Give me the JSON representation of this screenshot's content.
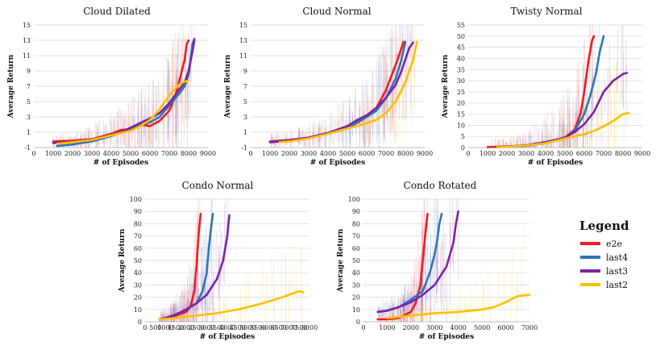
{
  "figure_legend": {
    "title": "Legend",
    "entries": [
      {
        "name": "e2e",
        "color": "#ee1c25"
      },
      {
        "name": "last4",
        "color": "#2e75b6"
      },
      {
        "name": "last3",
        "color": "#7b23a7"
      },
      {
        "name": "last2",
        "color": "#ffc000"
      }
    ]
  },
  "chart_data": [
    {
      "type": "line",
      "title": "Cloud Dilated",
      "xlabel": "# of Episodes",
      "ylabel": "Average Return",
      "xlim": [
        0,
        9000
      ],
      "ylim": [
        -1,
        15
      ],
      "xticks": [
        0,
        1000,
        2000,
        3000,
        4000,
        5000,
        6000,
        7000,
        8000,
        9000
      ],
      "yticks": [
        -1,
        1,
        3,
        5,
        7,
        9,
        11,
        13,
        15
      ],
      "series": [
        {
          "name": "e2e",
          "color": "#ee1c25",
          "x": [
            1000,
            2000,
            3000,
            4000,
            4500,
            5000,
            5500,
            6000,
            6500,
            7000,
            7200,
            7400,
            7600,
            7800,
            7900,
            8000
          ],
          "y": [
            -0.2,
            -0.1,
            0.1,
            0.8,
            1.3,
            1.4,
            2.0,
            1.8,
            2.5,
            3.8,
            5.0,
            6.5,
            8.5,
            10.5,
            12.5,
            13
          ]
        },
        {
          "name": "last4",
          "color": "#2e75b6",
          "x": [
            1200,
            2000,
            3000,
            4000,
            5000,
            6000,
            6500,
            7000,
            7500,
            7800,
            8000,
            8100,
            8200,
            8300
          ],
          "y": [
            -0.8,
            -0.6,
            -0.2,
            0.5,
            1.5,
            2.3,
            3.0,
            4.5,
            6.0,
            7.0,
            8.5,
            10.5,
            12.5,
            13.2
          ]
        },
        {
          "name": "last3",
          "color": "#7b23a7",
          "x": [
            1000,
            2000,
            3000,
            4000,
            4500,
            5000,
            5500,
            6000,
            6500,
            7000,
            7500,
            7800,
            8000,
            8200,
            8300
          ],
          "y": [
            -0.4,
            -0.3,
            0.0,
            0.6,
            1.0,
            1.6,
            2.2,
            2.8,
            3.5,
            4.8,
            6.5,
            7.5,
            9.0,
            11.5,
            13.0
          ]
        },
        {
          "name": "last2",
          "color": "#ffc000",
          "x": [
            1200,
            2000,
            3000,
            4000,
            5000,
            5500,
            6000,
            6500,
            7000,
            7500,
            7800,
            8000
          ],
          "y": [
            -0.5,
            -0.3,
            0.0,
            0.6,
            1.2,
            1.8,
            2.6,
            4.0,
            5.8,
            7.2,
            7.6,
            7.8
          ]
        }
      ]
    },
    {
      "type": "line",
      "title": "Cloud Normal",
      "xlabel": "# of Episodes",
      "ylabel": "Average Return",
      "xlim": [
        0,
        9000
      ],
      "ylim": [
        -1,
        15
      ],
      "xticks": [
        0,
        1000,
        2000,
        3000,
        4000,
        5000,
        6000,
        7000,
        8000,
        9000
      ],
      "yticks": [
        -1,
        1,
        3,
        5,
        7,
        9,
        11,
        13,
        15
      ],
      "series": [
        {
          "name": "e2e",
          "color": "#ee1c25",
          "x": [
            1000,
            2000,
            3000,
            4000,
            5000,
            5500,
            6000,
            6500,
            7000,
            7300,
            7600,
            7800,
            7900
          ],
          "y": [
            -0.2,
            0.0,
            0.3,
            0.9,
            1.6,
            2.2,
            3.0,
            4.2,
            6.5,
            8.5,
            10.5,
            12.0,
            12.8
          ]
        },
        {
          "name": "last4",
          "color": "#2e75b6",
          "x": [
            1000,
            2000,
            3000,
            4000,
            5000,
            5500,
            6000,
            6500,
            7000,
            7500,
            7800,
            8000
          ],
          "y": [
            -0.3,
            -0.1,
            0.3,
            0.8,
            1.5,
            2.3,
            3.0,
            3.8,
            5.5,
            8.0,
            10.5,
            12.8
          ]
        },
        {
          "name": "last3",
          "color": "#7b23a7",
          "x": [
            1000,
            2000,
            3000,
            4000,
            5000,
            5500,
            6000,
            6500,
            7000,
            7500,
            7800,
            8000,
            8200,
            8400
          ],
          "y": [
            -0.3,
            -0.1,
            0.3,
            0.9,
            1.8,
            2.6,
            3.2,
            4.2,
            5.5,
            7.2,
            9.0,
            10.5,
            12.0,
            12.7
          ]
        },
        {
          "name": "last2",
          "color": "#ffc000",
          "x": [
            1500,
            2000,
            3000,
            4000,
            5000,
            5500,
            6000,
            6500,
            7000,
            7500,
            8000,
            8400,
            8600
          ],
          "y": [
            -0.3,
            -0.2,
            0.2,
            0.8,
            1.5,
            1.8,
            2.2,
            2.6,
            3.5,
            5.0,
            7.5,
            10.5,
            12.8
          ]
        }
      ]
    },
    {
      "type": "line",
      "title": "Twisty Normal",
      "xlabel": "# of Episodes",
      "ylabel": "Average Return",
      "xlim": [
        0,
        9000
      ],
      "ylim": [
        0,
        55
      ],
      "xticks": [
        0,
        1000,
        2000,
        3000,
        4000,
        5000,
        6000,
        7000,
        8000,
        9000
      ],
      "yticks": [
        0,
        5,
        10,
        15,
        20,
        25,
        30,
        35,
        40,
        45,
        50,
        55
      ],
      "series": [
        {
          "name": "e2e",
          "color": "#ee1c25",
          "x": [
            1000,
            2000,
            3000,
            4000,
            5000,
            5500,
            5800,
            6000,
            6200,
            6400,
            6500
          ],
          "y": [
            0.2,
            0.5,
            0.8,
            2.0,
            4.5,
            8.0,
            15.0,
            25.0,
            38.0,
            48.0,
            50.0
          ]
        },
        {
          "name": "last4",
          "color": "#2e75b6",
          "x": [
            1500,
            2000,
            3000,
            4000,
            5000,
            5500,
            6000,
            6300,
            6600,
            6800,
            7000
          ],
          "y": [
            0.2,
            0.4,
            0.8,
            2.0,
            4.0,
            7.5,
            15.0,
            23.0,
            33.0,
            43.0,
            50.0
          ]
        },
        {
          "name": "last3",
          "color": "#7b23a7",
          "x": [
            1500,
            2000,
            3000,
            4000,
            5000,
            5500,
            6000,
            6500,
            7000,
            7500,
            8000,
            8200
          ],
          "y": [
            0.2,
            0.5,
            1.0,
            2.5,
            4.5,
            7.0,
            10.5,
            16.0,
            25.0,
            30.0,
            33.0,
            33.5
          ]
        },
        {
          "name": "last2",
          "color": "#ffc000",
          "x": [
            1500,
            2000,
            3000,
            4000,
            5000,
            6000,
            6500,
            7000,
            7500,
            8000,
            8300
          ],
          "y": [
            0.2,
            0.4,
            0.9,
            2.0,
            4.0,
            6.0,
            7.5,
            9.5,
            12.0,
            15.0,
            15.5
          ]
        }
      ]
    },
    {
      "type": "line",
      "title": "Condo Normal",
      "xlabel": "# of Episodes",
      "ylabel": "Average Return",
      "xlim": [
        0,
        8000
      ],
      "ylim": [
        0,
        100
      ],
      "xticks": [
        0,
        500,
        1000,
        1500,
        2000,
        2500,
        3000,
        3500,
        4000,
        4500,
        5000,
        5500,
        6000,
        6500,
        7000,
        7500,
        8000
      ],
      "yticks": [
        0,
        10,
        20,
        30,
        40,
        50,
        60,
        70,
        80,
        90,
        100
      ],
      "series": [
        {
          "name": "e2e",
          "color": "#ee1c25",
          "x": [
            700,
            1000,
            1500,
            2000,
            2200,
            2400,
            2500,
            2600,
            2700
          ],
          "y": [
            2,
            3,
            5,
            8,
            12,
            25,
            45,
            70,
            88
          ]
        },
        {
          "name": "last4",
          "color": "#2e75b6",
          "x": [
            700,
            1000,
            1500,
            2000,
            2500,
            2800,
            3000,
            3100,
            3200,
            3300
          ],
          "y": [
            2,
            3,
            6,
            10,
            15,
            25,
            40,
            60,
            75,
            88
          ]
        },
        {
          "name": "last3",
          "color": "#7b23a7",
          "x": [
            700,
            1000,
            1500,
            2000,
            2500,
            3000,
            3500,
            3800,
            4000,
            4100
          ],
          "y": [
            2,
            3,
            6,
            10,
            15,
            22,
            35,
            50,
            70,
            87
          ]
        },
        {
          "name": "last2",
          "color": "#ffc000",
          "x": [
            700,
            1500,
            2500,
            3500,
            4500,
            5500,
            6500,
            7000,
            7500,
            7700
          ],
          "y": [
            2,
            3,
            5,
            7,
            10,
            14,
            19,
            22,
            25,
            24
          ]
        }
      ]
    },
    {
      "type": "line",
      "title": "Condo Rotated",
      "xlabel": "# of Episodes",
      "ylabel": "Average Return",
      "xlim": [
        0,
        7000
      ],
      "ylim": [
        0,
        100
      ],
      "xticks": [
        0,
        1000,
        2000,
        3000,
        4000,
        5000,
        6000,
        7000
      ],
      "yticks": [
        0,
        10,
        20,
        30,
        40,
        50,
        60,
        70,
        80,
        90,
        100
      ],
      "series": [
        {
          "name": "e2e",
          "color": "#ee1c25",
          "x": [
            600,
            1000,
            1500,
            2000,
            2200,
            2400,
            2500,
            2600,
            2700
          ],
          "y": [
            2,
            2,
            3,
            8,
            15,
            30,
            50,
            70,
            88
          ]
        },
        {
          "name": "last4",
          "color": "#2e75b6",
          "x": [
            600,
            1000,
            1500,
            2000,
            2500,
            2800,
            3000,
            3100,
            3200,
            3300
          ],
          "y": [
            8,
            9,
            12,
            18,
            25,
            40,
            55,
            65,
            80,
            88
          ]
        },
        {
          "name": "last3",
          "color": "#7b23a7",
          "x": [
            600,
            1000,
            1500,
            2000,
            2500,
            3000,
            3500,
            3800,
            3900,
            4000
          ],
          "y": [
            8,
            9,
            12,
            16,
            22,
            30,
            45,
            65,
            80,
            90
          ]
        },
        {
          "name": "last2",
          "color": "#ffc000",
          "x": [
            1000,
            2000,
            3000,
            4000,
            5000,
            5500,
            6000,
            6500,
            7000
          ],
          "y": [
            3,
            5,
            7,
            8,
            10,
            12,
            16,
            21,
            22
          ]
        }
      ]
    }
  ]
}
